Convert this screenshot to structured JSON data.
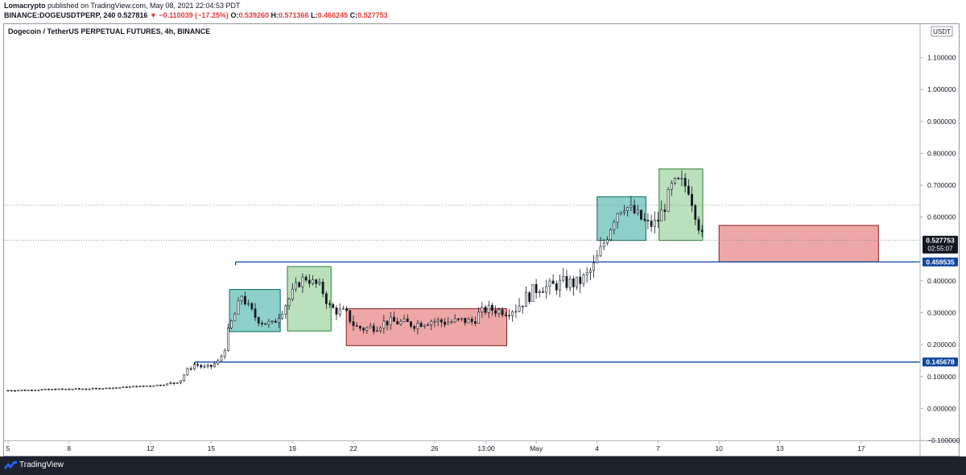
{
  "header": {
    "author": "Lomacrypto",
    "published_text": "published on TradingView.com, May 08, 2021 22:04:53 PDT",
    "symbol": "BINANCE:DOGEUSDTPERP, 240",
    "last": "0.527816",
    "change": "▼ −0.110039 (−17.25%)",
    "o_label": "O:",
    "o_value": "0.539260",
    "h_label": "H:",
    "h_value": "0.571366",
    "l_label": "L:",
    "l_value": "0.466245",
    "c_label": "C:",
    "c_value": "0.527753"
  },
  "footer": {
    "brand": "TradingView"
  },
  "chart_data": {
    "type": "candlestick",
    "title": "Dogecoin / TetherUS PERPETUAL FUTURES, 4h, BINANCE",
    "currency": "USDT",
    "ylim": [
      -0.1,
      1.2
    ],
    "yticks": [
      "1.100000",
      "1.000000",
      "0.900000",
      "0.800000",
      "0.700000",
      "0.600000",
      "0.400000",
      "0.300000",
      "0.200000",
      "0.100000",
      "0.000000",
      "−0.100000"
    ],
    "ytick_values": [
      1.1,
      1.0,
      0.9,
      0.8,
      0.7,
      0.6,
      0.4,
      0.3,
      0.2,
      0.1,
      0.0,
      -0.1
    ],
    "xticks": [
      {
        "label": "5",
        "day": 0
      },
      {
        "label": "8",
        "day": 3
      },
      {
        "label": "12",
        "day": 7
      },
      {
        "label": "15",
        "day": 10
      },
      {
        "label": "19",
        "day": 14
      },
      {
        "label": "22",
        "day": 17
      },
      {
        "label": "26",
        "day": 21
      },
      {
        "label": "13:00",
        "day": 23.54
      },
      {
        "label": "May",
        "day": 26
      },
      {
        "label": "4",
        "day": 29
      },
      {
        "label": "7",
        "day": 32
      },
      {
        "label": "10",
        "day": 35
      },
      {
        "label": "13",
        "day": 38
      },
      {
        "label": "17",
        "day": 42
      }
    ],
    "xlim_days": [
      -0.2,
      44.9
    ],
    "price_labels": [
      {
        "value": 0.527753,
        "text": "0.527753",
        "sub": "02:55:07",
        "bg": "#131722"
      },
      {
        "value": 0.459535,
        "text": "0.459535",
        "bg": "#0d47a1"
      },
      {
        "value": 0.145678,
        "text": "0.145678",
        "bg": "#0d47a1"
      }
    ],
    "horizontal_lines": [
      {
        "y": 0.459535,
        "day_start": 11.2,
        "color": "#0d47a1"
      },
      {
        "y": 0.145678,
        "day_start": 9.2,
        "color": "#0d47a1"
      }
    ],
    "dotted_lines": [
      0.637,
      0.527753
    ],
    "boxes": [
      {
        "d0": 10.9,
        "d1": 13.4,
        "y0": 0.241,
        "y1": 0.373,
        "color": "teal"
      },
      {
        "d0": 13.75,
        "d1": 15.9,
        "y0": 0.243,
        "y1": 0.445,
        "color": "green"
      },
      {
        "d0": 16.65,
        "d1": 24.55,
        "y0": 0.197,
        "y1": 0.313,
        "color": "red"
      },
      {
        "d0": 29.0,
        "d1": 31.4,
        "y0": 0.527,
        "y1": 0.664,
        "color": "teal"
      },
      {
        "d0": 32.05,
        "d1": 34.2,
        "y0": 0.527,
        "y1": 0.751,
        "color": "green"
      },
      {
        "d0": 35.0,
        "d1": 42.85,
        "y0": 0.459535,
        "y1": 0.574,
        "color": "red"
      }
    ],
    "price_path": [
      [
        0,
        0.057
      ],
      [
        1,
        0.058
      ],
      [
        2,
        0.06
      ],
      [
        3,
        0.061
      ],
      [
        4,
        0.062
      ],
      [
        5,
        0.064
      ],
      [
        6,
        0.068
      ],
      [
        7,
        0.072
      ],
      [
        7.5,
        0.074
      ],
      [
        8,
        0.078
      ],
      [
        8.5,
        0.09
      ],
      [
        8.8,
        0.118
      ],
      [
        9.2,
        0.14
      ],
      [
        9.6,
        0.128
      ],
      [
        10,
        0.132
      ],
      [
        10.4,
        0.15
      ],
      [
        10.6,
        0.178
      ],
      [
        10.9,
        0.255
      ],
      [
        11.2,
        0.3
      ],
      [
        11.5,
        0.355
      ],
      [
        11.8,
        0.32
      ],
      [
        12.2,
        0.285
      ],
      [
        12.6,
        0.27
      ],
      [
        13,
        0.262
      ],
      [
        13.4,
        0.3
      ],
      [
        13.8,
        0.34
      ],
      [
        14.2,
        0.385
      ],
      [
        14.6,
        0.412
      ],
      [
        15,
        0.395
      ],
      [
        15.4,
        0.38
      ],
      [
        15.8,
        0.32
      ],
      [
        16.2,
        0.305
      ],
      [
        16.6,
        0.302
      ],
      [
        17.1,
        0.255
      ],
      [
        17.6,
        0.25
      ],
      [
        18.1,
        0.258
      ],
      [
        18.6,
        0.272
      ],
      [
        19.2,
        0.27
      ],
      [
        20,
        0.264
      ],
      [
        20.8,
        0.276
      ],
      [
        21.6,
        0.27
      ],
      [
        22.4,
        0.276
      ],
      [
        22.9,
        0.272
      ],
      [
        23.2,
        0.3
      ],
      [
        23.6,
        0.312
      ],
      [
        24,
        0.308
      ],
      [
        24.6,
        0.304
      ],
      [
        25,
        0.316
      ],
      [
        25.4,
        0.34
      ],
      [
        25.8,
        0.365
      ],
      [
        26.2,
        0.385
      ],
      [
        26.6,
        0.378
      ],
      [
        27,
        0.388
      ],
      [
        27.4,
        0.394
      ],
      [
        28,
        0.392
      ],
      [
        28.4,
        0.41
      ],
      [
        28.8,
        0.44
      ],
      [
        29.1,
        0.485
      ],
      [
        29.5,
        0.545
      ],
      [
        29.9,
        0.61
      ],
      [
        30.3,
        0.64
      ],
      [
        30.7,
        0.62
      ],
      [
        31.1,
        0.598
      ],
      [
        31.5,
        0.575
      ],
      [
        31.9,
        0.58
      ],
      [
        32.3,
        0.63
      ],
      [
        32.7,
        0.7
      ],
      [
        33.1,
        0.71
      ],
      [
        33.5,
        0.69
      ],
      [
        33.9,
        0.6
      ],
      [
        34.2,
        0.528
      ]
    ]
  }
}
